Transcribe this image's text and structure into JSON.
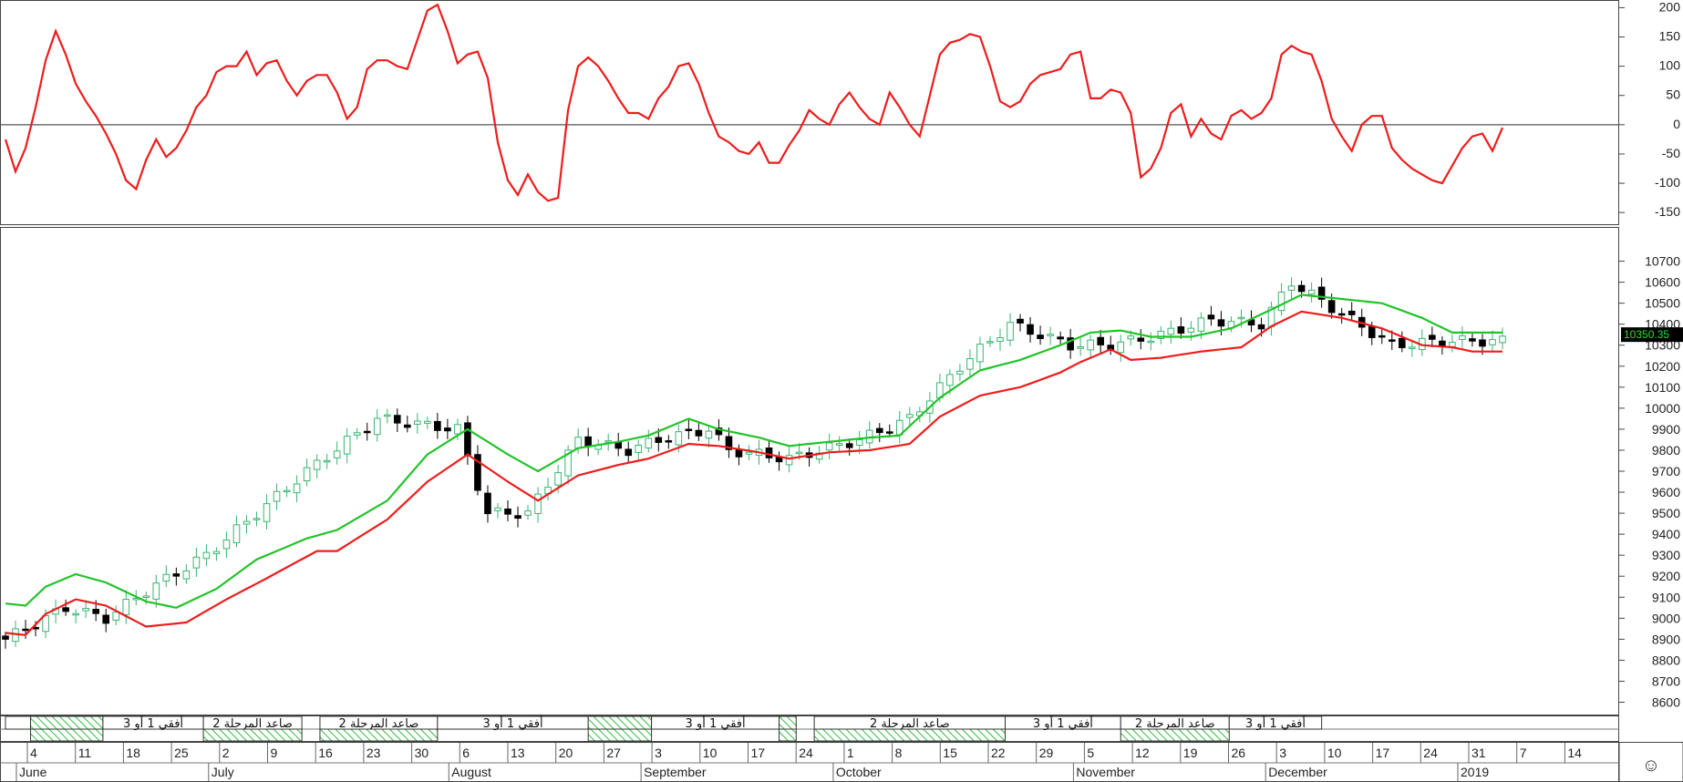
{
  "chart_data": [
    {
      "type": "line",
      "panel": "oscillator",
      "yticks": [
        200,
        150,
        100,
        50,
        0,
        -50,
        -100,
        -150
      ],
      "ylim": [
        -170,
        210
      ],
      "zero_line": 0,
      "color": "#ee1c1c",
      "values": [
        -25,
        -80,
        -40,
        30,
        110,
        160,
        120,
        70,
        40,
        15,
        -15,
        -50,
        -95,
        -110,
        -60,
        -25,
        -55,
        -40,
        -10,
        30,
        50,
        90,
        100,
        100,
        125,
        85,
        105,
        110,
        75,
        50,
        75,
        85,
        85,
        55,
        10,
        30,
        95,
        110,
        110,
        100,
        95,
        145,
        195,
        205,
        160,
        105,
        120,
        125,
        80,
        -30,
        -95,
        -120,
        -85,
        -115,
        -130,
        -125,
        25,
        100,
        115,
        100,
        75,
        45,
        20,
        20,
        10,
        45,
        65,
        100,
        105,
        70,
        20,
        -20,
        -30,
        -45,
        -50,
        -30,
        -65,
        -65,
        -35,
        -10,
        25,
        10,
        0,
        35,
        55,
        30,
        10,
        0,
        55,
        30,
        0,
        -20,
        50,
        120,
        140,
        145,
        155,
        150,
        100,
        40,
        30,
        40,
        70,
        85,
        90,
        95,
        120,
        125,
        45,
        45,
        60,
        55,
        20,
        -90,
        -75,
        -40,
        20,
        35,
        -20,
        10,
        -15,
        -25,
        15,
        25,
        10,
        20,
        45,
        120,
        135,
        125,
        120,
        75,
        10,
        -20,
        -45,
        0,
        15,
        15,
        -40,
        -60,
        -75,
        -85,
        -95,
        -100,
        -70,
        -40,
        -20,
        -15,
        -45,
        -5
      ]
    },
    {
      "type": "candlestick",
      "panel": "price",
      "yticks": [
        10700,
        10600,
        10500,
        10400,
        10300,
        10200,
        10100,
        10000,
        9900,
        9800,
        9700,
        9600,
        9500,
        9400,
        9300,
        9200,
        9100,
        9000,
        8900,
        8800,
        8700,
        8600
      ],
      "ylim": [
        8550,
        10850
      ],
      "last_price_label": "10350.35",
      "up_color": "#3cb371",
      "down_color": "#000000",
      "anchors": [
        [
          0,
          8900
        ],
        [
          6,
          9050
        ],
        [
          10,
          9000
        ],
        [
          14,
          9130
        ],
        [
          20,
          9300
        ],
        [
          30,
          9700
        ],
        [
          37,
          9950
        ],
        [
          45,
          9900
        ],
        [
          48,
          9500
        ],
        [
          52,
          9500
        ],
        [
          57,
          9850
        ],
        [
          62,
          9800
        ],
        [
          65,
          9850
        ],
        [
          70,
          9900
        ],
        [
          72,
          9800
        ],
        [
          78,
          9760
        ],
        [
          85,
          9850
        ],
        [
          90,
          9950
        ],
        [
          95,
          10200
        ],
        [
          100,
          10400
        ],
        [
          106,
          10300
        ],
        [
          110,
          10300
        ],
        [
          115,
          10350
        ],
        [
          120,
          10420
        ],
        [
          125,
          10400
        ],
        [
          128,
          10600
        ],
        [
          133,
          10450
        ],
        [
          138,
          10300
        ],
        [
          143,
          10320
        ],
        [
          146,
          10320
        ]
      ],
      "ma_fast": {
        "color": "#ee1c1c",
        "anchors": [
          [
            0,
            8930
          ],
          [
            2,
            8920
          ],
          [
            4,
            9020
          ],
          [
            7,
            9090
          ],
          [
            10,
            9060
          ],
          [
            14,
            8960
          ],
          [
            18,
            8980
          ],
          [
            22,
            9090
          ],
          [
            26,
            9190
          ],
          [
            31,
            9320
          ],
          [
            33,
            9320
          ],
          [
            38,
            9470
          ],
          [
            42,
            9650
          ],
          [
            46,
            9780
          ],
          [
            50,
            9650
          ],
          [
            53,
            9560
          ],
          [
            57,
            9680
          ],
          [
            61,
            9730
          ],
          [
            64,
            9760
          ],
          [
            68,
            9830
          ],
          [
            71,
            9820
          ],
          [
            75,
            9790
          ],
          [
            78,
            9760
          ],
          [
            82,
            9790
          ],
          [
            86,
            9800
          ],
          [
            90,
            9830
          ],
          [
            93,
            9960
          ],
          [
            97,
            10060
          ],
          [
            101,
            10100
          ],
          [
            105,
            10170
          ],
          [
            107,
            10220
          ],
          [
            110,
            10280
          ],
          [
            112,
            10230
          ],
          [
            115,
            10240
          ],
          [
            119,
            10270
          ],
          [
            123,
            10290
          ],
          [
            126,
            10390
          ],
          [
            129,
            10460
          ],
          [
            133,
            10430
          ],
          [
            137,
            10380
          ],
          [
            141,
            10300
          ],
          [
            144,
            10290
          ],
          [
            146,
            10270
          ]
        ]
      },
      "ma_slow": {
        "color": "#22c32a",
        "anchors": [
          [
            0,
            9070
          ],
          [
            2,
            9060
          ],
          [
            4,
            9150
          ],
          [
            7,
            9210
          ],
          [
            10,
            9170
          ],
          [
            14,
            9080
          ],
          [
            17,
            9050
          ],
          [
            21,
            9140
          ],
          [
            25,
            9280
          ],
          [
            30,
            9380
          ],
          [
            33,
            9420
          ],
          [
            38,
            9560
          ],
          [
            42,
            9780
          ],
          [
            46,
            9900
          ],
          [
            50,
            9780
          ],
          [
            53,
            9700
          ],
          [
            57,
            9810
          ],
          [
            61,
            9840
          ],
          [
            64,
            9870
          ],
          [
            68,
            9950
          ],
          [
            71,
            9900
          ],
          [
            75,
            9860
          ],
          [
            78,
            9820
          ],
          [
            82,
            9840
          ],
          [
            86,
            9860
          ],
          [
            89,
            9870
          ],
          [
            93,
            10050
          ],
          [
            97,
            10180
          ],
          [
            101,
            10230
          ],
          [
            105,
            10300
          ],
          [
            108,
            10360
          ],
          [
            111,
            10370
          ],
          [
            114,
            10340
          ],
          [
            118,
            10340
          ],
          [
            122,
            10380
          ],
          [
            126,
            10470
          ],
          [
            129,
            10540
          ],
          [
            133,
            10520
          ],
          [
            137,
            10500
          ],
          [
            141,
            10430
          ],
          [
            144,
            10360
          ],
          [
            146,
            10360
          ]
        ]
      }
    }
  ],
  "stage_rows": {
    "row1": [
      {
        "from": 0.0,
        "to": 2.5,
        "text": "",
        "hatch": false
      },
      {
        "from": 2.5,
        "to": 9.7,
        "text": "",
        "hatch": true
      },
      {
        "from": 9.7,
        "to": 19.7,
        "text": "أفقي 1 أو 3",
        "hatch": false
      },
      {
        "from": 19.7,
        "to": 29.5,
        "text": "صاعد المرحلة 2",
        "hatch": false
      },
      {
        "from": 31.3,
        "to": 43.0,
        "text": "صاعد المرحلة 2",
        "hatch": false
      },
      {
        "from": 43.0,
        "to": 58.0,
        "text": "أفقي 1 أو 3",
        "hatch": false
      },
      {
        "from": 58.0,
        "to": 64.3,
        "text": "",
        "hatch": true
      },
      {
        "from": 64.3,
        "to": 77.0,
        "text": "أفقي 1 أو 3",
        "hatch": false
      },
      {
        "from": 77.0,
        "to": 78.7,
        "text": "",
        "hatch": true
      },
      {
        "from": 80.5,
        "to": 99.5,
        "text": "صاعد المرحلة 2",
        "hatch": false
      },
      {
        "from": 99.5,
        "to": 111.0,
        "text": "أفقي 1 أو 3",
        "hatch": false
      },
      {
        "from": 111.0,
        "to": 121.8,
        "text": "صاعد المرحلة 2",
        "hatch": false
      },
      {
        "from": 121.8,
        "to": 131.0,
        "text": "أفقي 1 أو 3",
        "hatch": false
      }
    ],
    "row2_hatch": [
      [
        2.5,
        9.7
      ],
      [
        19.7,
        29.5
      ],
      [
        31.3,
        43.0
      ],
      [
        58.0,
        64.3
      ],
      [
        77.0,
        78.7
      ],
      [
        80.5,
        99.5
      ],
      [
        111.0,
        121.8
      ]
    ]
  },
  "time_axis": {
    "days": [
      "4",
      "11",
      "18",
      "25",
      "2",
      "9",
      "16",
      "23",
      "30",
      "6",
      "13",
      "20",
      "27",
      "3",
      "10",
      "17",
      "24",
      "1",
      "8",
      "15",
      "22",
      "29",
      "5",
      "12",
      "19",
      "26",
      "3",
      "10",
      "17",
      "24",
      "31",
      "7",
      "14"
    ],
    "months": [
      "June",
      "July",
      "August",
      "September",
      "October",
      "November",
      "December",
      "2019"
    ],
    "month_day_index": [
      0,
      4,
      9,
      13,
      17,
      22,
      26,
      30
    ],
    "smiley": "☺"
  }
}
